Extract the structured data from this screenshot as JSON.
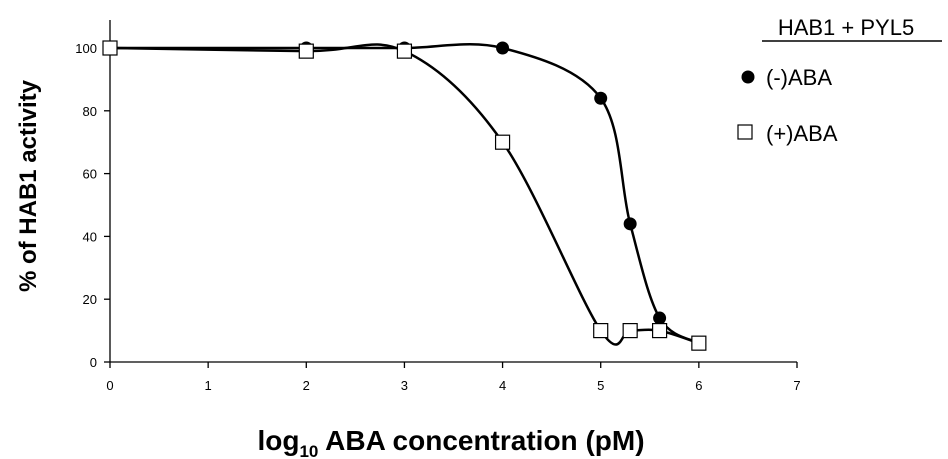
{
  "chart_data": {
    "type": "scatter",
    "title": "HAB1 + PYL5",
    "xlabel": "log10 ABA concentration (pM)",
    "xlabel_main": "log",
    "xlabel_sub": "10",
    "xlabel_rest": " ABA concentration (pM)",
    "ylabel": "% of HAB1 activity",
    "xlim": [
      0,
      7
    ],
    "ylim": [
      0,
      100
    ],
    "xticks": [
      0,
      1,
      2,
      3,
      4,
      5,
      6,
      7
    ],
    "yticks": [
      0,
      20,
      40,
      60,
      80,
      100
    ],
    "grid": false,
    "legend_position": "top-right",
    "series": [
      {
        "name": "(-)ABA",
        "marker": "filled-circle",
        "color": "#000000",
        "x": [
          0,
          2,
          3,
          4,
          5,
          5.3,
          5.6,
          6
        ],
        "y": [
          100,
          100,
          100,
          100,
          84,
          44,
          14,
          6
        ]
      },
      {
        "name": "(+)ABA",
        "marker": "open-square",
        "color": "#000000",
        "x": [
          0,
          2,
          3,
          4,
          5,
          5.3,
          5.6,
          6
        ],
        "y": [
          100,
          99,
          99,
          70,
          10,
          10,
          10,
          6
        ]
      }
    ]
  }
}
